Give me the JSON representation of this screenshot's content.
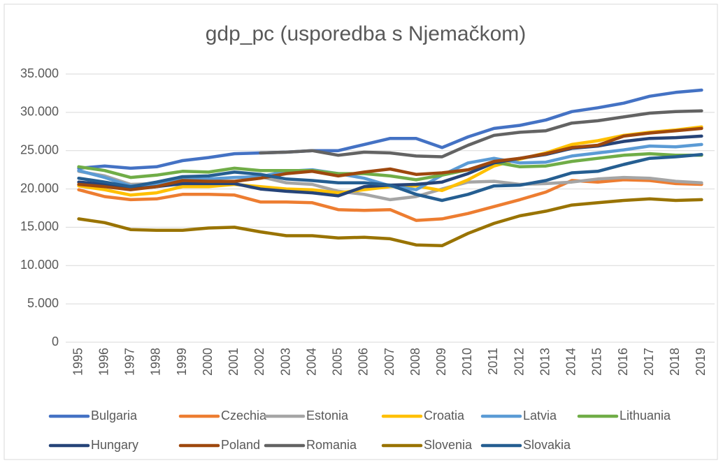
{
  "chart_data": {
    "type": "line",
    "title": "gdp_pc (usporedba s Njemačkom)",
    "categories": [
      "1995",
      "1996",
      "1997",
      "1998",
      "1999",
      "2000",
      "2001",
      "2002",
      "2003",
      "2004",
      "2005",
      "2006",
      "2007",
      "2008",
      "2009",
      "2010",
      "2011",
      "2012",
      "2013",
      "2014",
      "2015",
      "2016",
      "2017",
      "2018",
      "2019"
    ],
    "ylim": [
      0,
      35000
    ],
    "yticks": [
      0,
      {
        "value": 5000,
        "label": "5.000"
      },
      {
        "value": 10000,
        "label": "10.000"
      },
      {
        "value": 15000,
        "label": "15.000"
      },
      {
        "value": 20000,
        "label": "20.000"
      },
      {
        "value": 25000,
        "label": "25.000"
      },
      {
        "value": 30000,
        "label": "30.000"
      },
      {
        "value": 35000,
        "label": "35.000"
      }
    ],
    "grid": true,
    "legend": "bottom",
    "series": [
      {
        "name": "Bulgaria",
        "color": "#4472c4",
        "values": [
          22700,
          23000,
          22700,
          22900,
          23700,
          24100,
          24600,
          24700,
          24800,
          25000,
          25000,
          25800,
          26600,
          26600,
          25400,
          26800,
          27900,
          28300,
          29000,
          30100,
          30600,
          31200,
          32100,
          32600,
          32900
        ]
      },
      {
        "name": "Czechia",
        "color": "#ed7d31",
        "values": [
          19900,
          19000,
          18600,
          18700,
          19300,
          19300,
          19200,
          18300,
          18300,
          18200,
          17300,
          17200,
          17300,
          15900,
          16100,
          16800,
          17700,
          18600,
          19600,
          21100,
          20900,
          21200,
          21100,
          20700,
          20600
        ]
      },
      {
        "name": "Estonia",
        "color": "#a5a5a5",
        "values": [
          22300,
          21700,
          20600,
          20700,
          20500,
          20500,
          20900,
          21600,
          20800,
          20600,
          19700,
          19300,
          18600,
          19000,
          20000,
          20900,
          21000,
          20600,
          20700,
          20900,
          21300,
          21500,
          21400,
          21000,
          20800
        ]
      },
      {
        "name": "Croatia",
        "color": "#ffc000",
        "values": [
          20400,
          19900,
          19200,
          19500,
          20300,
          20300,
          20600,
          20300,
          20000,
          19900,
          19500,
          19900,
          20300,
          20400,
          19800,
          21200,
          23000,
          23900,
          24700,
          25800,
          26300,
          27000,
          27400,
          27700,
          28100
        ]
      },
      {
        "name": "Latvia",
        "color": "#5b9bd5",
        "values": [
          22400,
          21500,
          20400,
          20600,
          21200,
          21300,
          21500,
          21600,
          22300,
          22500,
          22000,
          21400,
          20400,
          19900,
          21800,
          23400,
          24000,
          23400,
          23500,
          24300,
          24700,
          25100,
          25600,
          25500,
          25800
        ]
      },
      {
        "name": "Lithuania",
        "color": "#70ad47",
        "values": [
          22900,
          22400,
          21500,
          21800,
          22300,
          22200,
          22700,
          22400,
          22400,
          22400,
          22000,
          22000,
          21700,
          21200,
          21800,
          22500,
          23500,
          22900,
          23000,
          23600,
          24000,
          24400,
          24600,
          24400,
          24400
        ]
      },
      {
        "name": "Hungary",
        "color": "#264478",
        "values": [
          20900,
          20600,
          20000,
          20300,
          20700,
          20700,
          20700,
          20000,
          19700,
          19500,
          19100,
          20300,
          20500,
          20600,
          20900,
          22000,
          23400,
          24000,
          24500,
          25300,
          25600,
          26200,
          26600,
          26700,
          26900
        ]
      },
      {
        "name": "Poland",
        "color": "#9e480e",
        "values": [
          20600,
          20300,
          19900,
          20300,
          21100,
          21000,
          21000,
          21400,
          22000,
          22300,
          21700,
          22200,
          22600,
          21900,
          22100,
          22500,
          23600,
          24000,
          24600,
          25400,
          25700,
          26900,
          27300,
          27600,
          27900
        ]
      },
      {
        "name": "Romania",
        "color": "#636363",
        "values": [
          null,
          null,
          null,
          null,
          null,
          null,
          null,
          24700,
          24800,
          25000,
          24400,
          24800,
          24700,
          24300,
          24200,
          25700,
          27000,
          27400,
          27600,
          28600,
          28900,
          29400,
          29900,
          30100,
          30200
        ]
      },
      {
        "name": "Slovenia",
        "color": "#997300",
        "values": [
          16100,
          15600,
          14700,
          14600,
          14600,
          14900,
          15000,
          14400,
          13900,
          13900,
          13600,
          13700,
          13500,
          12700,
          12600,
          14200,
          15500,
          16500,
          17100,
          17900,
          18200,
          18500,
          18700,
          18500,
          18600
        ]
      },
      {
        "name": "Slovakia",
        "color": "#255e91",
        "values": [
          21400,
          20900,
          20300,
          20900,
          21600,
          21700,
          22200,
          21900,
          21300,
          21100,
          20800,
          20800,
          20500,
          19300,
          18500,
          19300,
          20400,
          20500,
          21100,
          22100,
          22300,
          23200,
          24000,
          24200,
          24500
        ]
      }
    ]
  }
}
